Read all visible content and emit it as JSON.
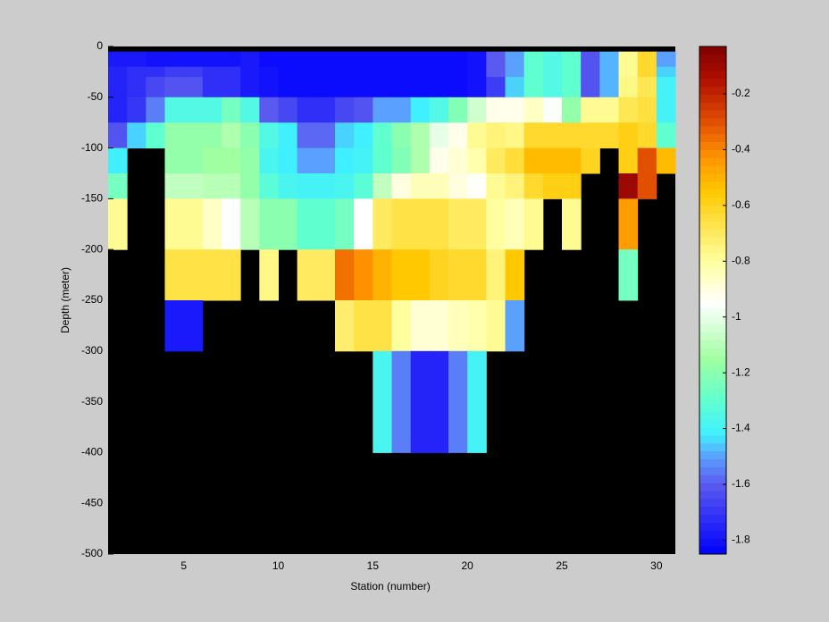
{
  "chart_data": {
    "type": "heatmap",
    "xlabel": "Station (number)",
    "ylabel": "Depth (meter)",
    "x": [
      1,
      2,
      3,
      4,
      5,
      6,
      7,
      8,
      9,
      10,
      11,
      12,
      13,
      14,
      15,
      16,
      17,
      18,
      19,
      20,
      21,
      22,
      23,
      24,
      25,
      26,
      27,
      28,
      29,
      30,
      31
    ],
    "y": [
      0,
      -5,
      -20,
      -30,
      -50,
      -75,
      -100,
      -125,
      -150,
      -200,
      -250,
      -300,
      -400,
      -500
    ],
    "z": [
      [
        null,
        null,
        null,
        null,
        null,
        null,
        null,
        null,
        null,
        null,
        null,
        null,
        null,
        null,
        null,
        null,
        null,
        null,
        null,
        null,
        null,
        null,
        null,
        null,
        null,
        null,
        null,
        null,
        null,
        null
      ],
      [
        -1.78,
        -1.78,
        -1.8,
        -1.8,
        -1.8,
        -1.8,
        -1.8,
        -1.78,
        -1.82,
        -1.82,
        -1.82,
        -1.82,
        -1.82,
        -1.82,
        -1.82,
        -1.82,
        -1.82,
        -1.82,
        -1.82,
        -1.8,
        -1.6,
        -1.5,
        -1.3,
        -1.35,
        -1.3,
        -1.62,
        -1.48,
        -0.78,
        -0.62,
        -1.5
      ],
      [
        -1.75,
        -1.72,
        -1.72,
        -1.68,
        -1.68,
        -1.72,
        -1.72,
        -1.78,
        -1.8,
        -1.82,
        -1.82,
        -1.82,
        -1.82,
        -1.82,
        -1.82,
        -1.82,
        -1.82,
        -1.82,
        -1.82,
        -1.8,
        -1.6,
        -1.5,
        -1.3,
        -1.35,
        -1.3,
        -1.62,
        -1.48,
        -0.78,
        -0.62,
        -1.45
      ],
      [
        -1.75,
        -1.72,
        -1.65,
        -1.62,
        -1.62,
        -1.72,
        -1.72,
        -1.78,
        -1.8,
        -1.82,
        -1.82,
        -1.82,
        -1.82,
        -1.82,
        -1.82,
        -1.82,
        -1.82,
        -1.82,
        -1.82,
        -1.8,
        -1.68,
        -1.45,
        -1.3,
        -1.35,
        -1.3,
        -1.62,
        -1.48,
        -0.76,
        -0.68,
        -1.4
      ],
      [
        -1.75,
        -1.7,
        -1.55,
        -1.35,
        -1.35,
        -1.35,
        -1.25,
        -1.35,
        -1.6,
        -1.65,
        -1.72,
        -1.72,
        -1.65,
        -1.62,
        -1.5,
        -1.5,
        -1.42,
        -1.35,
        -1.22,
        -1.05,
        -0.92,
        -0.92,
        -0.86,
        -0.96,
        -1.18,
        -0.78,
        -0.78,
        -0.68,
        -0.65,
        -1.4
      ],
      [
        -1.62,
        -1.45,
        -1.3,
        -1.18,
        -1.18,
        -1.18,
        -1.12,
        -1.2,
        -1.35,
        -1.42,
        -1.58,
        -1.58,
        -1.45,
        -1.42,
        -1.3,
        -1.2,
        -1.12,
        -1.0,
        -0.92,
        -0.78,
        -0.74,
        -0.76,
        -0.62,
        -0.62,
        -0.62,
        -0.62,
        -0.62,
        -0.58,
        -0.62,
        -1.3
      ],
      [
        -1.42,
        null,
        null,
        -1.18,
        -1.18,
        -1.15,
        -1.15,
        -1.18,
        -1.38,
        -1.42,
        -1.5,
        -1.5,
        -1.42,
        -1.4,
        -1.3,
        -1.22,
        -1.12,
        -0.92,
        -0.88,
        -0.82,
        -0.7,
        -0.64,
        -0.52,
        -0.52,
        -0.52,
        -0.6,
        null,
        -0.58,
        -0.3,
        -0.52
      ],
      [
        -1.25,
        null,
        null,
        -1.08,
        -1.08,
        -1.1,
        -1.1,
        -1.18,
        -1.32,
        -1.38,
        -1.4,
        -1.4,
        -1.38,
        -1.32,
        -1.08,
        -0.9,
        -0.84,
        -0.84,
        -0.9,
        -0.94,
        -0.78,
        -0.74,
        -0.62,
        -0.58,
        -0.58,
        null,
        null,
        -0.1,
        -0.3,
        null
      ],
      [
        -0.78,
        null,
        null,
        -0.78,
        -0.78,
        -0.86,
        -0.95,
        -1.1,
        -1.2,
        -1.2,
        -1.3,
        -1.3,
        -1.25,
        -0.95,
        -0.7,
        -0.66,
        -0.66,
        -0.66,
        -0.7,
        -0.7,
        -0.8,
        -0.84,
        -0.78,
        null,
        -0.78,
        null,
        null,
        -0.45,
        null,
        null
      ],
      [
        null,
        null,
        null,
        -0.66,
        -0.66,
        -0.66,
        -0.66,
        null,
        -0.76,
        null,
        -0.7,
        -0.7,
        -0.36,
        -0.42,
        -0.5,
        -0.55,
        -0.55,
        -0.6,
        -0.62,
        -0.62,
        -0.74,
        -0.55,
        null,
        null,
        null,
        null,
        null,
        -1.25,
        null,
        null
      ],
      [
        null,
        null,
        null,
        -1.78,
        -1.78,
        null,
        null,
        null,
        null,
        null,
        null,
        null,
        -0.72,
        -0.66,
        -0.66,
        -0.8,
        -0.88,
        -0.88,
        -0.84,
        -0.82,
        -0.78,
        -1.5,
        null,
        null,
        null,
        null,
        null,
        null,
        null,
        null
      ],
      [
        null,
        null,
        null,
        null,
        null,
        null,
        null,
        null,
        null,
        null,
        null,
        null,
        null,
        null,
        -1.38,
        -1.55,
        -1.75,
        -1.75,
        -1.55,
        -1.4,
        null,
        null,
        null,
        null,
        null,
        null,
        null,
        null,
        null,
        null
      ],
      [
        null,
        null,
        null,
        null,
        null,
        null,
        null,
        null,
        null,
        null,
        null,
        null,
        null,
        null,
        null,
        null,
        null,
        null,
        null,
        null,
        null,
        null,
        null,
        null,
        null,
        null,
        null,
        null,
        null,
        null
      ]
    ],
    "xlim": [
      1,
      31
    ],
    "ylim": [
      -500,
      0
    ],
    "xticks": [
      5,
      10,
      15,
      20,
      25,
      30
    ],
    "yticks": [
      0,
      -50,
      -100,
      -150,
      -200,
      -250,
      -300,
      -350,
      -400,
      -450,
      -500
    ],
    "clim": [
      -1.85,
      -0.03
    ],
    "cticks": [
      -0.2,
      -0.4,
      -0.6,
      -0.8,
      -1,
      -1.2,
      -1.4,
      -1.6,
      -1.8
    ],
    "colormap": [
      {
        "value": -1.85,
        "color": "#0000ff"
      },
      {
        "value": -1.6,
        "color": "#5a5af0"
      },
      {
        "value": -1.5,
        "color": "#5aa0ff"
      },
      {
        "value": -1.42,
        "color": "#40f0ff"
      },
      {
        "value": -1.3,
        "color": "#60ffd0"
      },
      {
        "value": -1.15,
        "color": "#a0ffa0"
      },
      {
        "value": -0.95,
        "color": "#ffffff"
      },
      {
        "value": -0.8,
        "color": "#ffffa0"
      },
      {
        "value": -0.65,
        "color": "#ffe040"
      },
      {
        "value": -0.55,
        "color": "#ffc800"
      },
      {
        "value": -0.42,
        "color": "#ff9000"
      },
      {
        "value": -0.3,
        "color": "#e05000"
      },
      {
        "value": -0.15,
        "color": "#b01000"
      },
      {
        "value": -0.03,
        "color": "#800000"
      }
    ],
    "nan_color": "#000000"
  }
}
